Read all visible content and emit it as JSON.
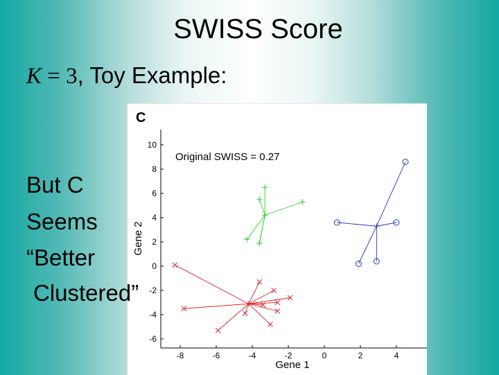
{
  "slide": {
    "title": "SWISS Score",
    "subtitle_math_var": "K",
    "subtitle_math_rest": " = 3",
    "subtitle_text": ", Toy Example:",
    "body_lines": [
      "But C",
      "Seems",
      "“Better",
      "Clustered”"
    ]
  },
  "chart_data": {
    "type": "scatter",
    "panel_label": "C",
    "annotation": "Original SWISS = 0.27",
    "xlabel": "Gene 1",
    "ylabel": "Gene 2",
    "xlim": [
      -9,
      5.5
    ],
    "ylim": [
      -6.4,
      10.5
    ],
    "xticks": [
      -8,
      -6,
      -4,
      -2,
      0,
      2,
      4
    ],
    "yticks": [
      -6,
      -4,
      -2,
      0,
      2,
      4,
      6,
      8,
      10
    ],
    "clusters": [
      {
        "color": "#e0242a",
        "marker": "x",
        "centroid": [
          -4.2,
          -3.1
        ],
        "points": [
          [
            -8.3,
            0.1
          ],
          [
            -7.8,
            -3.5
          ],
          [
            -5.9,
            -5.3
          ],
          [
            -4.4,
            -3.9
          ],
          [
            -3.6,
            -1.3
          ],
          [
            -3.4,
            -3.2
          ],
          [
            -2.8,
            -2.0
          ],
          [
            -2.6,
            -3.7
          ],
          [
            -3.0,
            -4.8
          ],
          [
            -2.6,
            -3.0
          ],
          [
            -1.9,
            -2.6
          ]
        ]
      },
      {
        "color": "#2bd12b",
        "marker": "+",
        "centroid": [
          -3.3,
          4.2
        ],
        "points": [
          [
            -3.6,
            5.5
          ],
          [
            -3.3,
            6.5
          ],
          [
            -3.6,
            1.9
          ],
          [
            -4.3,
            2.2
          ],
          [
            -3.6,
            1.9
          ],
          [
            -1.2,
            5.3
          ]
        ]
      },
      {
        "color": "#2135c8",
        "marker": "o",
        "centroid": [
          2.9,
          3.3
        ],
        "points": [
          [
            0.7,
            3.6
          ],
          [
            1.9,
            0.2
          ],
          [
            2.9,
            0.4
          ],
          [
            4.0,
            3.6
          ],
          [
            4.5,
            8.6
          ]
        ]
      }
    ]
  }
}
